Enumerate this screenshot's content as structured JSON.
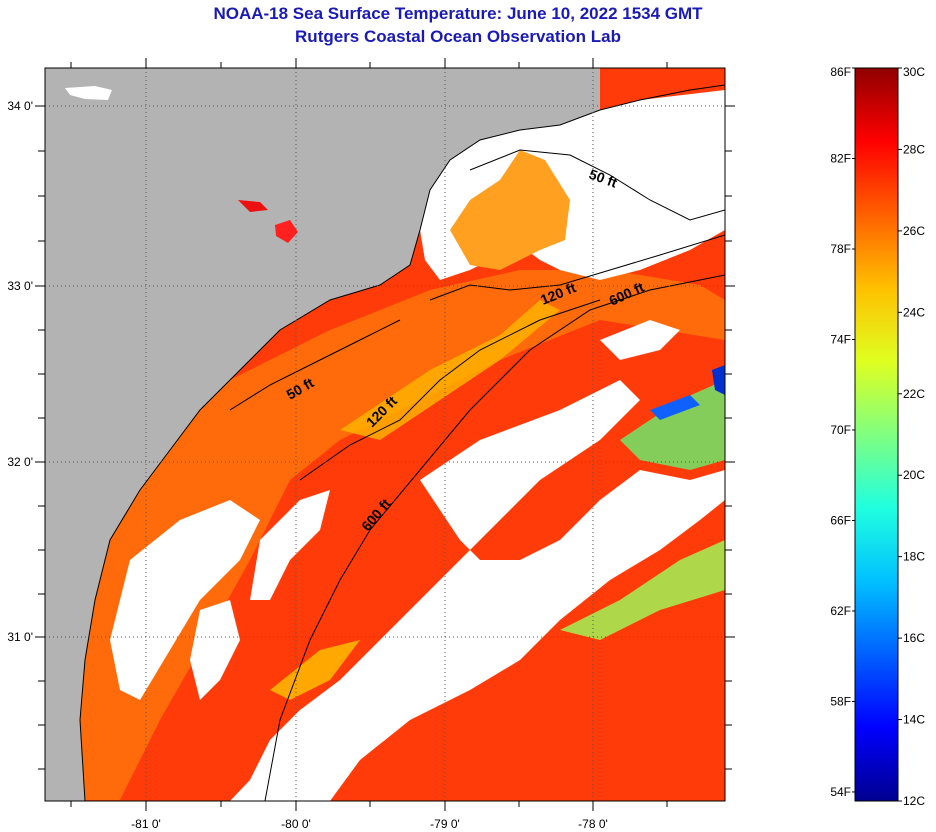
{
  "title": {
    "line1": "NOAA-18 Sea Surface Temperature:  June 10, 2022 1534 GMT",
    "line2": "Rutgers Coastal Ocean Observation Lab"
  },
  "map": {
    "lat_labels": [
      "34 0'",
      "33 0'",
      "32 0'",
      "31 0'"
    ],
    "lon_labels": [
      "-81 0'",
      "-80 0'",
      "-79 0'",
      "-78 0'"
    ],
    "contour_labels": [
      {
        "id": "50ft-north",
        "text": "50 ft"
      },
      {
        "id": "120ft-north",
        "text": "120 ft"
      },
      {
        "id": "600ft-north",
        "text": "600 ft"
      },
      {
        "id": "50ft-south",
        "text": "50 ft"
      },
      {
        "id": "120ft-south",
        "text": "120 ft"
      },
      {
        "id": "600ft-south",
        "text": "600 ft"
      }
    ],
    "colors": {
      "land": "#b3b3b3",
      "cloud": "#ffffff",
      "contour": "#000000",
      "grid": "#555555"
    }
  },
  "colorbar": {
    "fahrenheit_labels": [
      "86F",
      "82F",
      "78F",
      "74F",
      "70F",
      "66F",
      "62F",
      "58F",
      "54F"
    ],
    "celsius_labels": [
      "30C",
      "28C",
      "26C",
      "24C",
      "22C",
      "20C",
      "18C",
      "16C",
      "14C",
      "12C"
    ],
    "range_c": [
      12,
      30
    ],
    "stops": [
      "#00008f",
      "#0000ff",
      "#0060ff",
      "#00c0ff",
      "#20ffdf",
      "#80ff80",
      "#dfff20",
      "#ffc000",
      "#ff6000",
      "#ff0000",
      "#8f0000"
    ]
  }
}
